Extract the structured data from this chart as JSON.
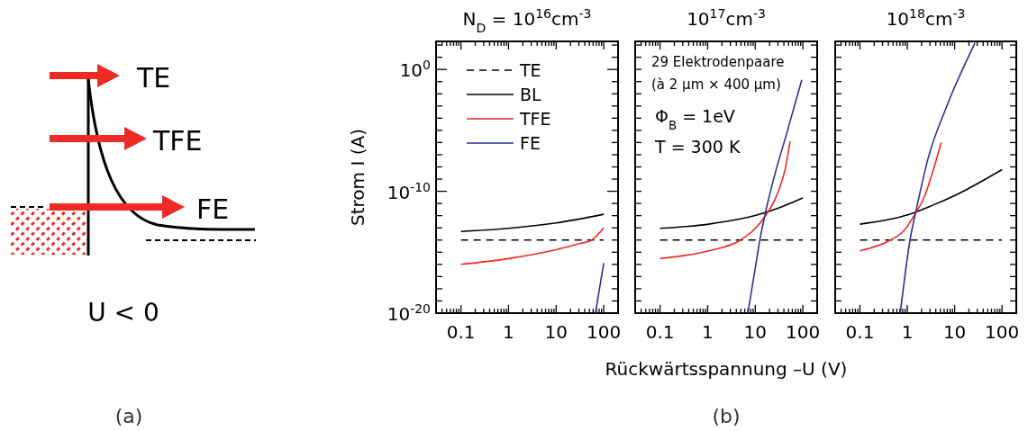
{
  "chart_data": [
    {
      "type": "other",
      "annotations": [
        "TE",
        "TFE",
        "FE",
        "U < 0",
        "(a)"
      ]
    },
    {
      "type": "line",
      "title": "N$_{D}$ = 10$^{16}$cm$^{-3}$",
      "ylabel": "Strom I (A)",
      "log": "xy",
      "legend": "top left",
      "xlim": [
        0.03,
        200
      ],
      "ylim": [
        1e-20,
        200
      ],
      "xticks": [
        {
          "value": 0.04,
          "label": null
        },
        {
          "value": 0.05,
          "label": null
        },
        {
          "value": 0.06,
          "label": null
        },
        {
          "value": 0.07,
          "label": null
        },
        {
          "value": 0.08,
          "label": null
        },
        {
          "value": 0.09,
          "label": null
        },
        0.1,
        {
          "value": 0.2,
          "label": null
        },
        {
          "value": 0.3,
          "label": null
        },
        {
          "value": 0.4,
          "label": null
        },
        {
          "value": 0.5,
          "label": null
        },
        {
          "value": 0.6,
          "label": null
        },
        {
          "value": 0.7,
          "label": null
        },
        {
          "value": 0.8,
          "label": null
        },
        {
          "value": 0.9,
          "label": null
        },
        1,
        {
          "value": 2,
          "label": null
        },
        {
          "value": 3,
          "label": null
        },
        {
          "value": 4,
          "label": null
        },
        {
          "value": 5,
          "label": null
        },
        {
          "value": 6,
          "label": null
        },
        {
          "value": 7,
          "label": null
        },
        {
          "value": 8,
          "label": null
        },
        {
          "value": 9,
          "label": null
        },
        10,
        {
          "value": 20,
          "label": null
        },
        {
          "value": 30,
          "label": null
        },
        {
          "value": 40,
          "label": null
        },
        {
          "value": 50,
          "label": null
        },
        {
          "value": 60,
          "label": null
        },
        {
          "value": 70,
          "label": null
        },
        {
          "value": 80,
          "label": null
        },
        {
          "value": 90,
          "label": null
        },
        100
      ],
      "yticks": [
        {
          "value": 1e-20,
          "label": "10$^{-20}$"
        },
        {
          "value": 1e-19,
          "label": null
        },
        {
          "value": 1e-18,
          "label": null
        },
        {
          "value": 1e-17,
          "label": null
        },
        {
          "value": 1e-16,
          "label": null
        },
        {
          "value": 1e-15,
          "label": null
        },
        {
          "value": 1e-14,
          "label": null
        },
        {
          "value": 1e-13,
          "label": null
        },
        {
          "value": 1e-12,
          "label": null
        },
        {
          "value": 1e-11,
          "label": null
        },
        {
          "value": 1e-10,
          "label": "10$^{-10}$"
        },
        {
          "value": 1e-09,
          "label": null
        },
        {
          "value": 1e-08,
          "label": null
        },
        {
          "value": 1e-07,
          "label": null
        },
        {
          "value": 1e-06,
          "label": null
        },
        {
          "value": 1e-05,
          "label": null
        },
        {
          "value": 0.0001,
          "label": null
        },
        {
          "value": 0.001,
          "label": null
        },
        {
          "value": 0.01,
          "label": null
        },
        {
          "value": 0.1,
          "label": null
        },
        {
          "value": 1,
          "label": "10$^{0}$"
        },
        {
          "value": 10,
          "label": null
        },
        {
          "value": 100,
          "label": null
        }
      ],
      "series": [
        {
          "name": "TE",
          "color": "#000000",
          "line_style": "dashed",
          "x": [
            0.1,
            100
          ],
          "values": [
            1e-14,
            1e-14
          ]
        },
        {
          "name": "BL",
          "color": "#000000",
          "x": [
            0.1,
            1,
            10,
            100
          ],
          "values": [
            5e-14,
            9e-14,
            2.5e-13,
            1.3e-12
          ]
        },
        {
          "name": "TFE",
          "color": "#ee2a24",
          "x": [
            0.1,
            1,
            10,
            31,
            56,
            100
          ],
          "values": [
            1e-16,
            3e-16,
            1.6e-15,
            5e-15,
            1e-14,
            1e-13
          ]
        },
        {
          "name": "FE",
          "color": "#2e3192",
          "x": [
            67,
            100
          ],
          "values": [
            1e-20,
            1.3e-16
          ]
        }
      ]
    },
    {
      "type": "line",
      "title": "10$^{17}$cm$^{-3}$",
      "xlabel": "Rückwärtsspannung –U (V)",
      "log": "xy",
      "tick_labels": "x",
      "annotations": [
        "29 Elektrodenpaare",
        "(à 2 µm × 400 µm)",
        "Φ$_{B}$ = 1eV",
        "T = 300 K",
        "(b)"
      ],
      "xlim": [
        0.03,
        200
      ],
      "ylim": [
        1e-20,
        200
      ],
      "xticks": [
        {
          "value": 0.04,
          "label": null
        },
        {
          "value": 0.05,
          "label": null
        },
        {
          "value": 0.06,
          "label": null
        },
        {
          "value": 0.07,
          "label": null
        },
        {
          "value": 0.08,
          "label": null
        },
        {
          "value": 0.09,
          "label": null
        },
        0.1,
        {
          "value": 0.2,
          "label": null
        },
        {
          "value": 0.3,
          "label": null
        },
        {
          "value": 0.4,
          "label": null
        },
        {
          "value": 0.5,
          "label": null
        },
        {
          "value": 0.6,
          "label": null
        },
        {
          "value": 0.7,
          "label": null
        },
        {
          "value": 0.8,
          "label": null
        },
        {
          "value": 0.9,
          "label": null
        },
        1,
        {
          "value": 2,
          "label": null
        },
        {
          "value": 3,
          "label": null
        },
        {
          "value": 4,
          "label": null
        },
        {
          "value": 5,
          "label": null
        },
        {
          "value": 6,
          "label": null
        },
        {
          "value": 7,
          "label": null
        },
        {
          "value": 8,
          "label": null
        },
        {
          "value": 9,
          "label": null
        },
        10,
        {
          "value": 20,
          "label": null
        },
        {
          "value": 30,
          "label": null
        },
        {
          "value": 40,
          "label": null
        },
        {
          "value": 50,
          "label": null
        },
        {
          "value": 60,
          "label": null
        },
        {
          "value": 70,
          "label": null
        },
        {
          "value": 80,
          "label": null
        },
        {
          "value": 90,
          "label": null
        },
        100
      ],
      "yticks": [
        {
          "value": 1e-20,
          "label": null
        },
        {
          "value": 1e-19,
          "label": null
        },
        {
          "value": 1e-18,
          "label": null
        },
        {
          "value": 1e-17,
          "label": null
        },
        {
          "value": 1e-16,
          "label": null
        },
        {
          "value": 1e-15,
          "label": null
        },
        {
          "value": 1e-14,
          "label": null
        },
        {
          "value": 1e-13,
          "label": null
        },
        {
          "value": 1e-12,
          "label": null
        },
        {
          "value": 1e-11,
          "label": null
        },
        {
          "value": 1e-10,
          "label": null
        },
        {
          "value": 1e-09,
          "label": null
        },
        {
          "value": 1e-08,
          "label": null
        },
        {
          "value": 1e-07,
          "label": null
        },
        {
          "value": 1e-06,
          "label": null
        },
        {
          "value": 1e-05,
          "label": null
        },
        {
          "value": 0.0001,
          "label": null
        },
        {
          "value": 0.001,
          "label": null
        },
        {
          "value": 0.01,
          "label": null
        },
        {
          "value": 0.1,
          "label": null
        },
        {
          "value": 1,
          "label": null
        },
        {
          "value": 10,
          "label": null
        },
        {
          "value": 100,
          "label": null
        }
      ],
      "series": [
        {
          "color": "#000000",
          "line_style": "dashed",
          "x": [
            0.1,
            100
          ],
          "values": [
            1e-14,
            1e-14
          ]
        },
        {
          "color": "#000000",
          "x": [
            0.1,
            1.05,
            10.8,
            34.6,
            100
          ],
          "values": [
            9e-14,
            2e-13,
            1.1e-12,
            5e-12,
            2.8e-11
          ]
        },
        {
          "color": "#ee2a24",
          "x": [
            0.1,
            1.05,
            4.9,
            14.5,
            30,
            43,
            54
          ],
          "values": [
            3e-16,
            1.3e-15,
            1e-14,
            5e-13,
            8e-11,
            8e-09,
            1.3e-06
          ]
        },
        {
          "color": "#2e3192",
          "x": [
            7,
            10,
            12.5,
            16.7,
            25.9,
            46,
            95
          ],
          "values": [
            1e-20,
            5e-17,
            1e-14,
            2.5e-12,
            2.5e-09,
            6e-06,
            0.14
          ]
        }
      ]
    },
    {
      "type": "line",
      "title": "10$^{18}$cm$^{-3}$",
      "log": "xy",
      "tick_labels": "x",
      "xlim": [
        0.03,
        200
      ],
      "ylim": [
        1e-20,
        200
      ],
      "xticks": [
        {
          "value": 0.04,
          "label": null
        },
        {
          "value": 0.05,
          "label": null
        },
        {
          "value": 0.06,
          "label": null
        },
        {
          "value": 0.07,
          "label": null
        },
        {
          "value": 0.08,
          "label": null
        },
        {
          "value": 0.09,
          "label": null
        },
        0.1,
        {
          "value": 0.2,
          "label": null
        },
        {
          "value": 0.3,
          "label": null
        },
        {
          "value": 0.4,
          "label": null
        },
        {
          "value": 0.5,
          "label": null
        },
        {
          "value": 0.6,
          "label": null
        },
        {
          "value": 0.7,
          "label": null
        },
        {
          "value": 0.8,
          "label": null
        },
        {
          "value": 0.9,
          "label": null
        },
        1,
        {
          "value": 2,
          "label": null
        },
        {
          "value": 3,
          "label": null
        },
        {
          "value": 4,
          "label": null
        },
        {
          "value": 5,
          "label": null
        },
        {
          "value": 6,
          "label": null
        },
        {
          "value": 7,
          "label": null
        },
        {
          "value": 8,
          "label": null
        },
        {
          "value": 9,
          "label": null
        },
        10,
        {
          "value": 20,
          "label": null
        },
        {
          "value": 30,
          "label": null
        },
        {
          "value": 40,
          "label": null
        },
        {
          "value": 50,
          "label": null
        },
        {
          "value": 60,
          "label": null
        },
        {
          "value": 70,
          "label": null
        },
        {
          "value": 80,
          "label": null
        },
        {
          "value": 90,
          "label": null
        },
        100
      ],
      "yticks": [
        {
          "value": 1e-20,
          "label": null
        },
        {
          "value": 1e-19,
          "label": null
        },
        {
          "value": 1e-18,
          "label": null
        },
        {
          "value": 1e-17,
          "label": null
        },
        {
          "value": 1e-16,
          "label": null
        },
        {
          "value": 1e-15,
          "label": null
        },
        {
          "value": 1e-14,
          "label": null
        },
        {
          "value": 1e-13,
          "label": null
        },
        {
          "value": 1e-12,
          "label": null
        },
        {
          "value": 1e-11,
          "label": null
        },
        {
          "value": 1e-10,
          "label": null
        },
        {
          "value": 1e-09,
          "label": null
        },
        {
          "value": 1e-08,
          "label": null
        },
        {
          "value": 1e-07,
          "label": null
        },
        {
          "value": 1e-06,
          "label": null
        },
        {
          "value": 1e-05,
          "label": null
        },
        {
          "value": 0.0001,
          "label": null
        },
        {
          "value": 0.001,
          "label": null
        },
        {
          "value": 0.01,
          "label": null
        },
        {
          "value": 0.1,
          "label": null
        },
        {
          "value": 1,
          "label": null
        },
        {
          "value": 10,
          "label": null
        },
        {
          "value": 100,
          "label": null
        }
      ],
      "series": [
        {
          "color": "#000000",
          "line_style": "dashed",
          "x": [
            0.1,
            100
          ],
          "values": [
            1e-14,
            1e-14
          ]
        },
        {
          "color": "#000000",
          "x": [
            0.1,
            0.98,
            3.1,
            10.1,
            100
          ],
          "values": [
            2e-13,
            1.1e-12,
            6e-12,
            4.5e-11,
            6e-09
          ]
        },
        {
          "color": "#ee2a24",
          "x": [
            0.1,
            0.44,
            0.85,
            1.41,
            2.35,
            3.63,
            5.2
          ],
          "values": [
            1.3e-15,
            1e-14,
            6e-14,
            1.1e-12,
            4.5e-11,
            8e-09,
            1e-06
          ]
        },
        {
          "color": "#2e3192",
          "x": [
            0.71,
            1.14,
            1.63,
            2.7,
            6.5,
            26.9
          ],
          "values": [
            1e-20,
            1e-14,
            8e-12,
            4e-08,
            0.0006,
            150
          ]
        }
      ]
    }
  ]
}
